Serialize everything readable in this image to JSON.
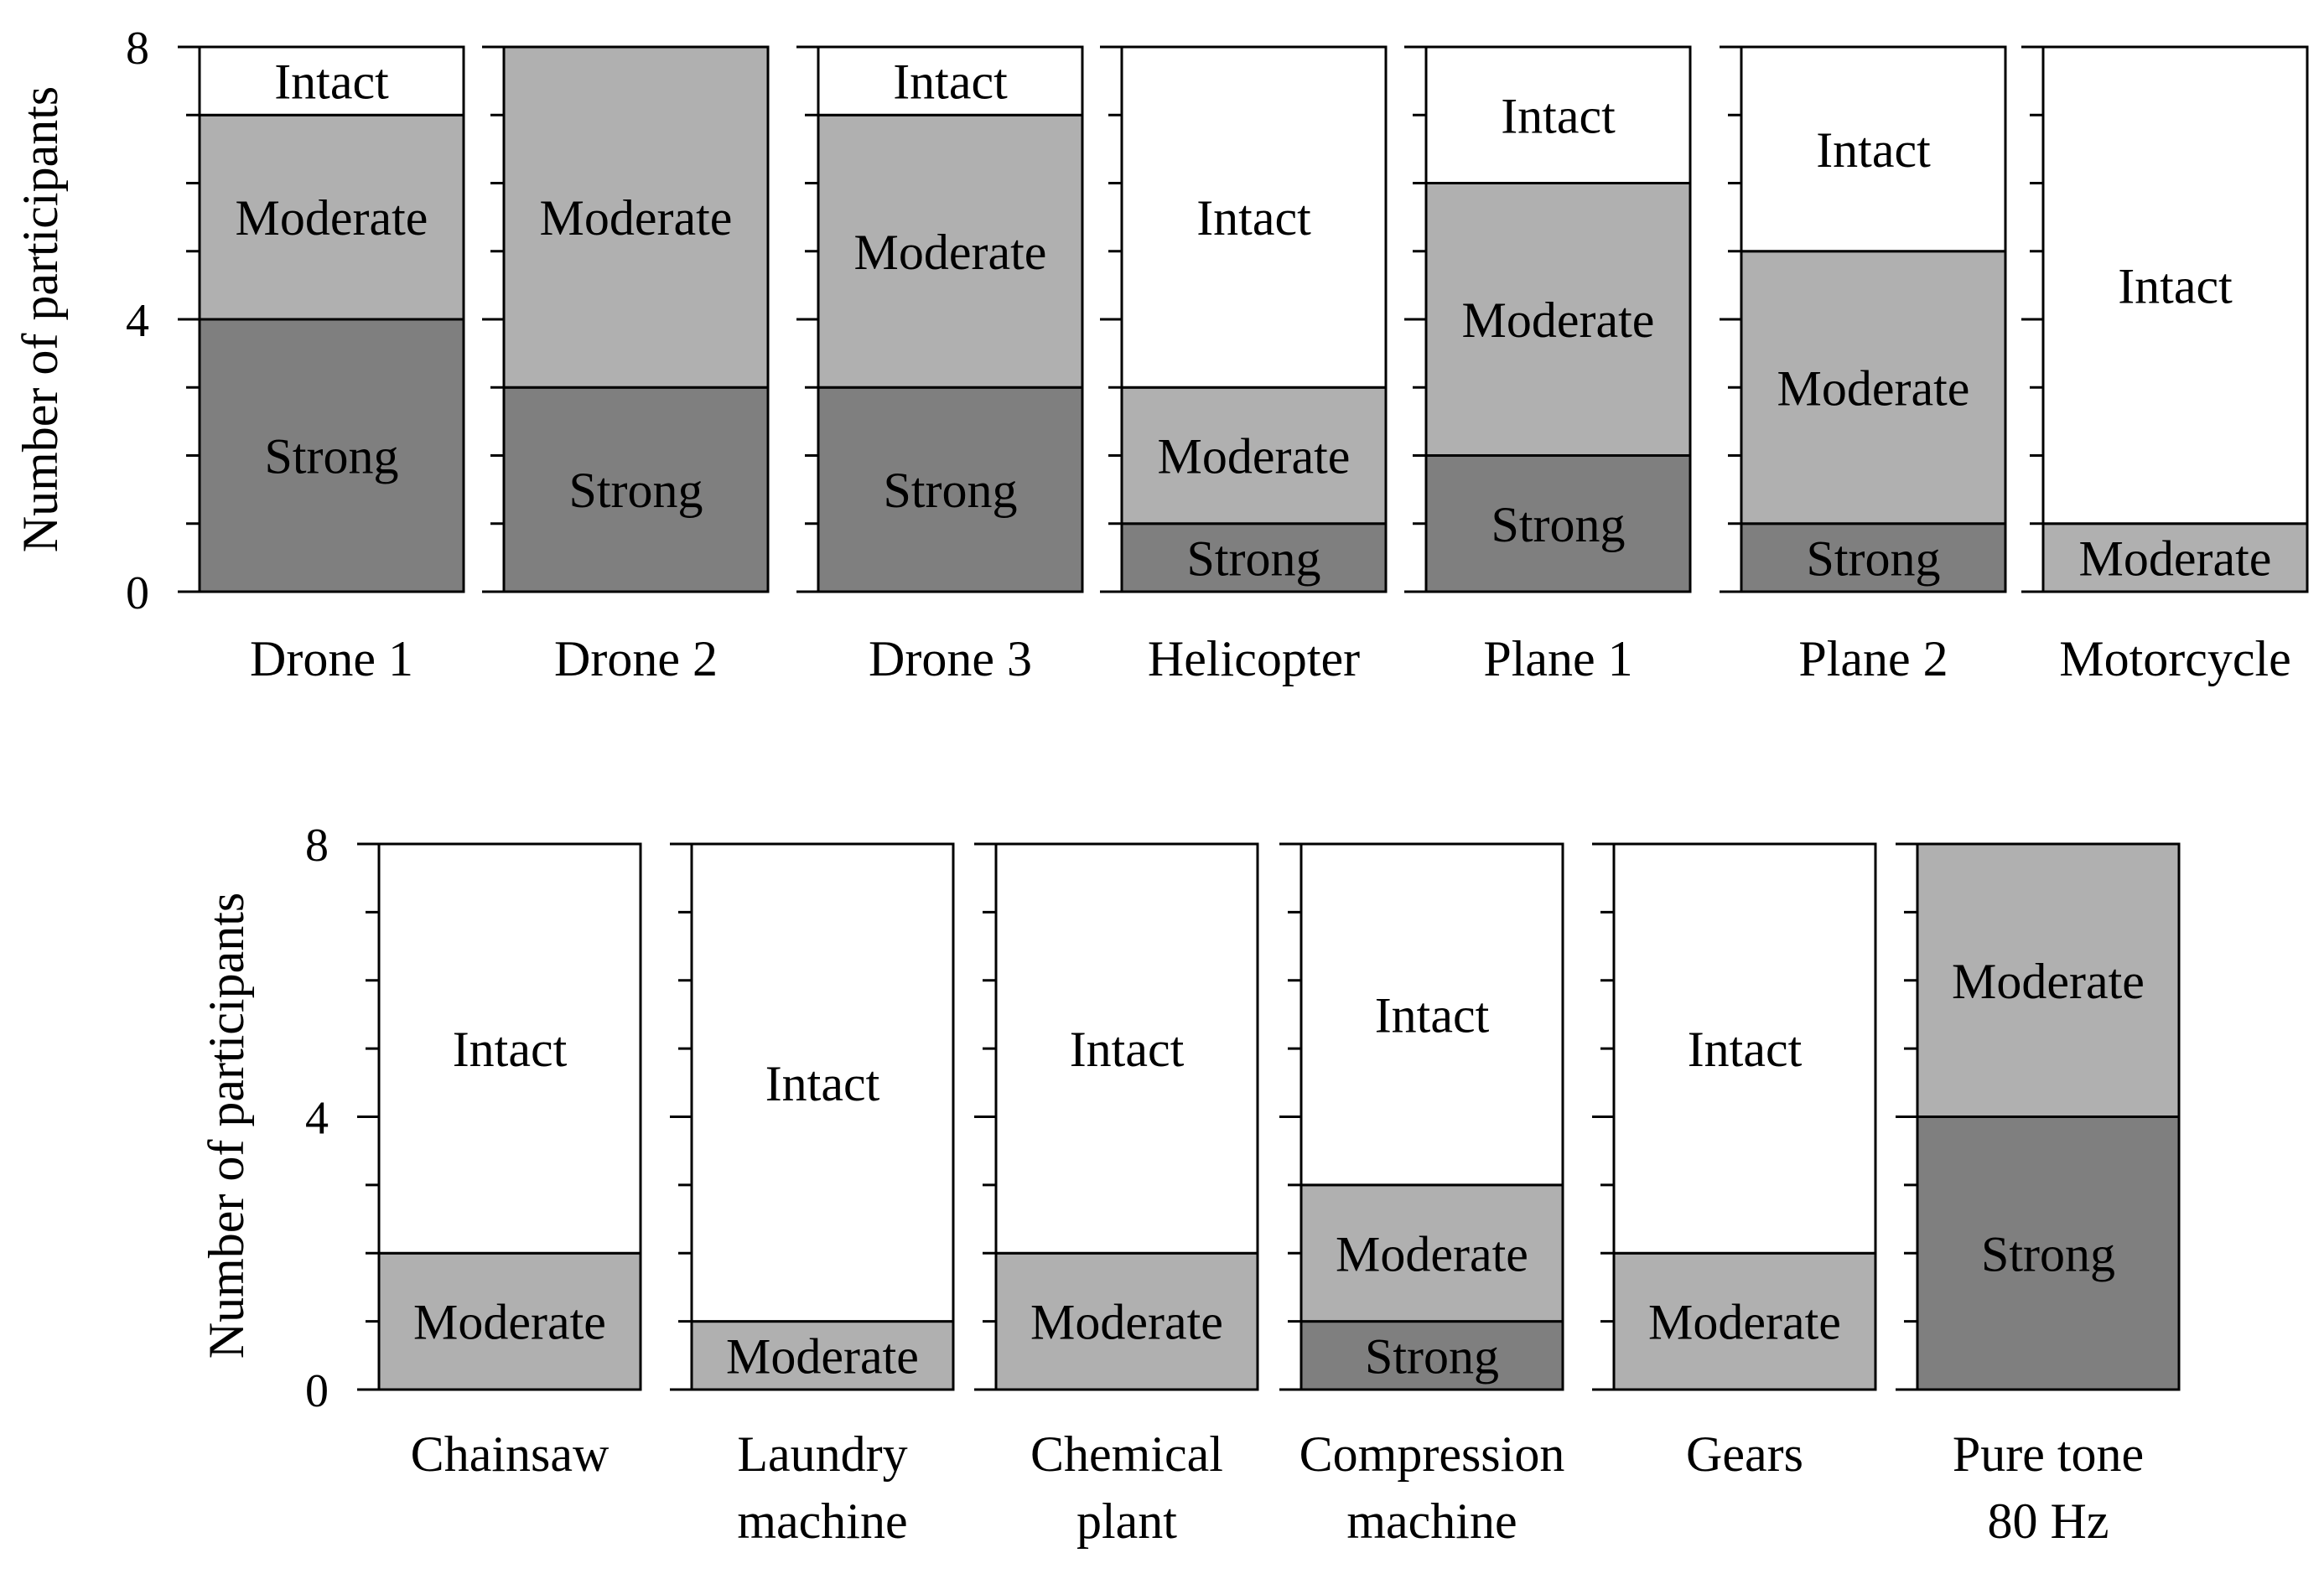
{
  "colors": {
    "Strong": "#7f7f7f",
    "Moderate": "#b0b0b0",
    "Intact": "#ffffff",
    "stroke": "#000000"
  },
  "chart_data": [
    {
      "type": "bar",
      "stacked": true,
      "ylabel": "Number of participants",
      "ylim": [
        0,
        8
      ],
      "yticks": [
        "0",
        "4",
        "8"
      ],
      "ytick_values": [
        0,
        4,
        8
      ],
      "minor_tick_step": 1,
      "categories": [
        [
          "Drone 1"
        ],
        [
          "Drone 2"
        ],
        [
          "Drone 3"
        ],
        [
          "Helicopter"
        ],
        [
          "Plane 1"
        ],
        [
          "Plane 2"
        ],
        [
          "Motorcycle"
        ]
      ],
      "series": [
        {
          "name": "Strong",
          "values": [
            4,
            3,
            3,
            1,
            2,
            1,
            0
          ]
        },
        {
          "name": "Moderate",
          "values": [
            3,
            5,
            4,
            2,
            4,
            4,
            1
          ]
        },
        {
          "name": "Intact",
          "values": [
            1,
            0,
            1,
            5,
            2,
            3,
            7
          ]
        }
      ]
    },
    {
      "type": "bar",
      "stacked": true,
      "ylabel": "Number of participants",
      "ylim": [
        0,
        8
      ],
      "yticks": [
        "0",
        "4",
        "8"
      ],
      "ytick_values": [
        0,
        4,
        8
      ],
      "minor_tick_step": 1,
      "categories": [
        [
          "Chainsaw"
        ],
        [
          "Laundry",
          "machine"
        ],
        [
          "Chemical",
          "plant"
        ],
        [
          "Compression",
          "machine"
        ],
        [
          "Gears"
        ],
        [
          "Pure tone",
          "80 Hz"
        ]
      ],
      "series": [
        {
          "name": "Strong",
          "values": [
            0,
            0,
            0,
            1,
            0,
            4
          ]
        },
        {
          "name": "Moderate",
          "values": [
            2,
            1,
            2,
            2,
            2,
            4
          ]
        },
        {
          "name": "Intact",
          "values": [
            6,
            7,
            6,
            5,
            6,
            0
          ]
        }
      ]
    }
  ]
}
